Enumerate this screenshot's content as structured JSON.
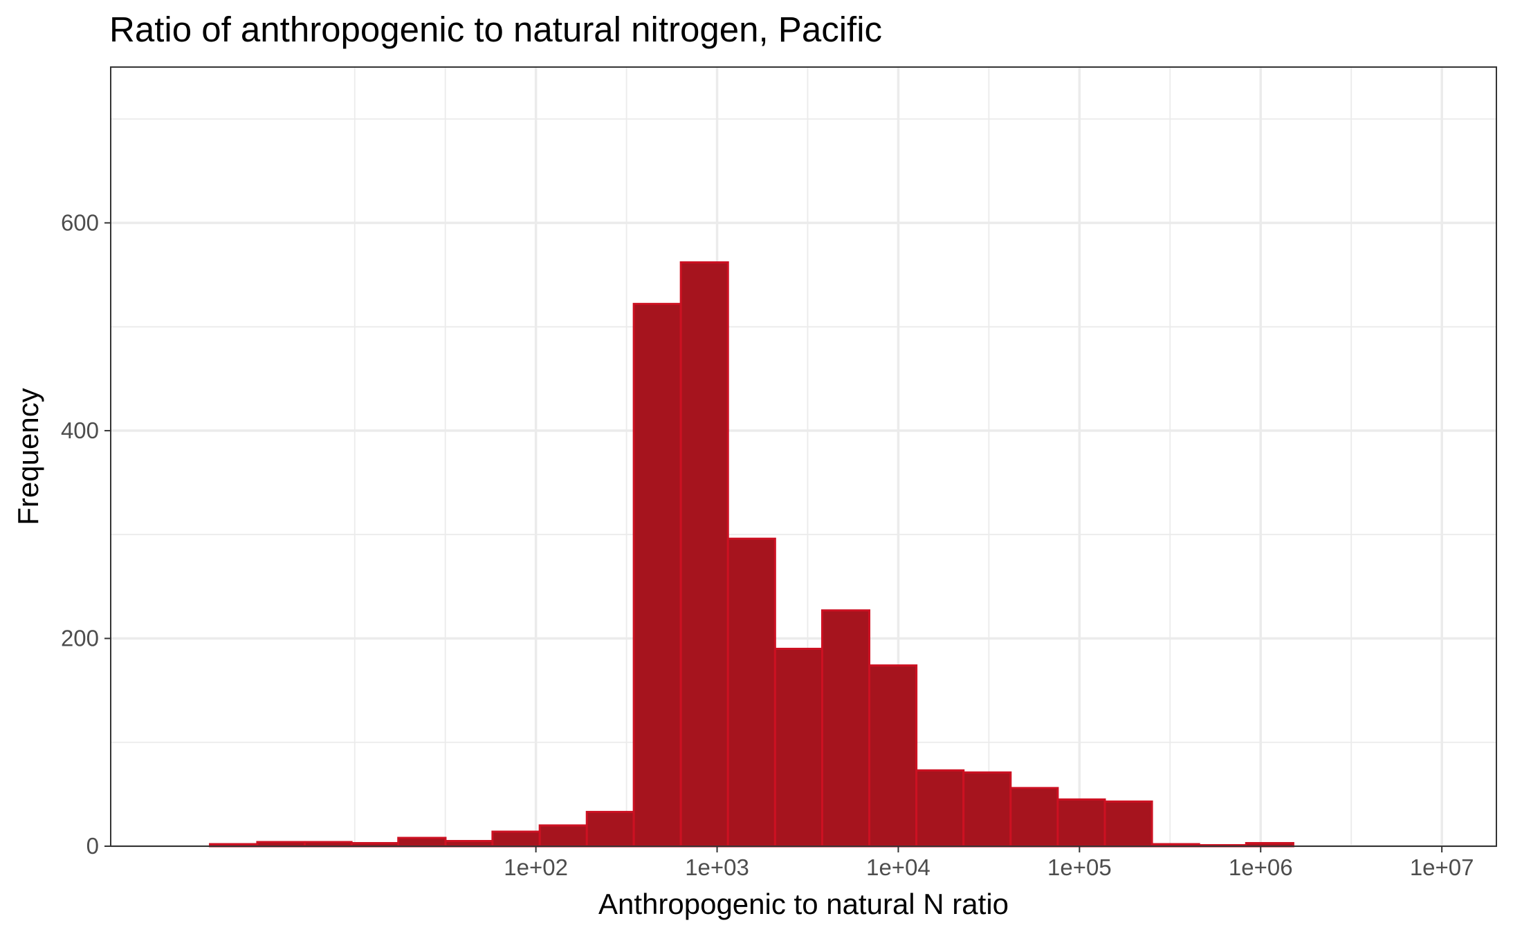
{
  "chart_data": {
    "type": "bar",
    "title": "Ratio of anthropogenic to natural nitrogen, Pacific",
    "xlabel": "Anthropogenic to natural N ratio",
    "ylabel": "Frequency",
    "x_scale": "log10",
    "xlim": [
      0.45,
      20000000
    ],
    "ylim": [
      0,
      750
    ],
    "x_ticks": [
      100,
      1000,
      10000,
      100000,
      1000000,
      10000000
    ],
    "x_tick_labels": [
      "1e+02",
      "1e+03",
      "1e+04",
      "1e+05",
      "1e+06",
      "1e+07"
    ],
    "y_ticks": [
      0,
      200,
      400,
      600
    ],
    "y_tick_labels": [
      "0",
      "200",
      "400",
      "600"
    ],
    "grid": true,
    "fill_color": "#a6141e",
    "outline_color": "#cc1122",
    "bins": [
      {
        "from": 1.59,
        "to": 2.9,
        "count": 2
      },
      {
        "from": 2.9,
        "to": 5.3,
        "count": 4
      },
      {
        "from": 5.3,
        "to": 9.6,
        "count": 4
      },
      {
        "from": 9.6,
        "to": 17.4,
        "count": 3
      },
      {
        "from": 17.4,
        "to": 31.7,
        "count": 8
      },
      {
        "from": 31.7,
        "to": 57.6,
        "count": 5
      },
      {
        "from": 57.6,
        "to": 105,
        "count": 14
      },
      {
        "from": 105,
        "to": 191,
        "count": 20
      },
      {
        "from": 191,
        "to": 347,
        "count": 33
      },
      {
        "from": 347,
        "to": 631,
        "count": 522
      },
      {
        "from": 631,
        "to": 1148,
        "count": 562
      },
      {
        "from": 1148,
        "to": 2089,
        "count": 296
      },
      {
        "from": 2089,
        "to": 3802,
        "count": 190
      },
      {
        "from": 3802,
        "to": 6918,
        "count": 227
      },
      {
        "from": 6918,
        "to": 12589,
        "count": 174
      },
      {
        "from": 12589,
        "to": 22909,
        "count": 73
      },
      {
        "from": 22909,
        "to": 41687,
        "count": 71
      },
      {
        "from": 41687,
        "to": 75858,
        "count": 56
      },
      {
        "from": 75858,
        "to": 138038,
        "count": 45
      },
      {
        "from": 138038,
        "to": 251189,
        "count": 43
      },
      {
        "from": 251189,
        "to": 457088,
        "count": 2
      },
      {
        "from": 457088,
        "to": 831764,
        "count": 1
      },
      {
        "from": 831764,
        "to": 1513561,
        "count": 3
      },
      {
        "from": 1513561,
        "to": 2754229,
        "count": 0
      },
      {
        "from": 2754229,
        "to": 5011872,
        "count": 0
      },
      {
        "from": 5011872,
        "to": 9120108,
        "count": 0
      },
      {
        "from": 9120108,
        "to": 16595869,
        "count": 0
      }
    ]
  }
}
